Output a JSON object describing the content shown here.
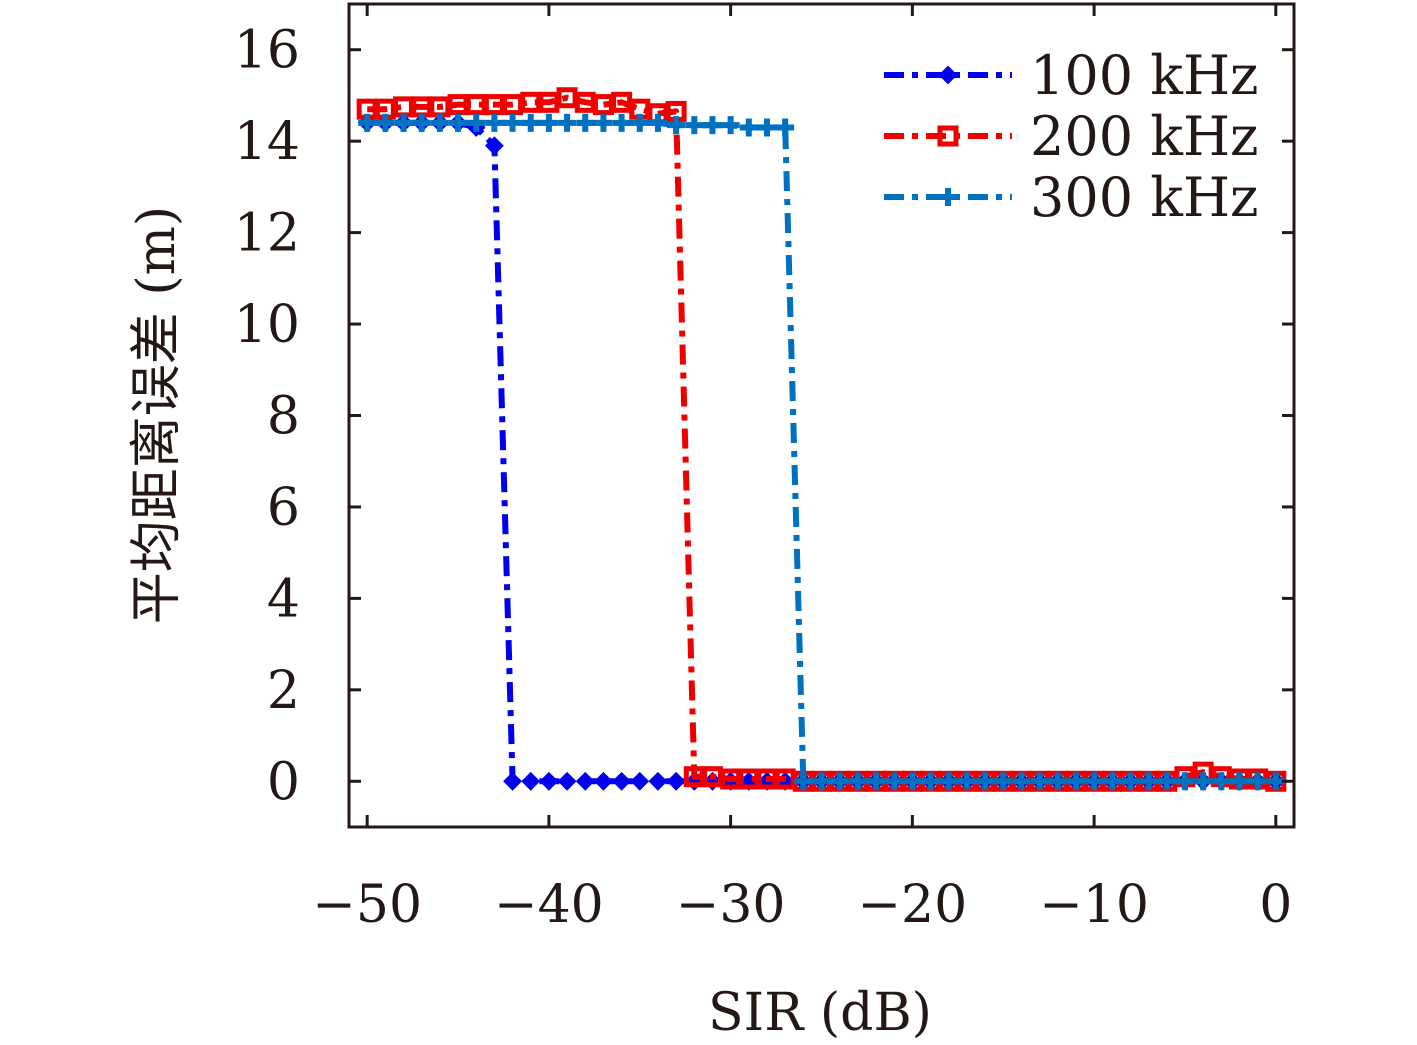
{
  "chart_data": {
    "type": "line",
    "title": "",
    "xlabel": "SIR (dB)",
    "ylabel": "平均距离误差 (m)",
    "xlim": [
      -51,
      1
    ],
    "ylim": [
      -1,
      17
    ],
    "xticks": [
      -50,
      -40,
      -30,
      -20,
      -10,
      0
    ],
    "xtick_labels": [
      "−50",
      "−40",
      "−30",
      "−20",
      "−10",
      "0"
    ],
    "yticks": [
      0,
      2,
      4,
      6,
      8,
      10,
      12,
      14,
      16
    ],
    "ytick_labels": [
      "0",
      "2",
      "4",
      "6",
      "8",
      "10",
      "12",
      "14",
      "16"
    ],
    "grid": false,
    "legend_position": "top-right",
    "series": [
      {
        "name": "100 kHz",
        "color": "#0000ee",
        "marker": "diamond",
        "x": [
          -50,
          -49,
          -48,
          -47,
          -46,
          -45,
          -44,
          -43,
          -42,
          -41,
          -40,
          -39,
          -38,
          -37,
          -36,
          -35,
          -34,
          -33,
          -32,
          -31,
          -30,
          -29,
          -28,
          -27,
          -26,
          -25,
          -24,
          -23,
          -22,
          -21,
          -20,
          -19,
          -18,
          -17,
          -16,
          -15,
          -14,
          -13,
          -12,
          -11,
          -10,
          -9,
          -8,
          -7,
          -6,
          -5,
          -4,
          -3,
          -2,
          -1,
          0
        ],
        "y": [
          14.4,
          14.4,
          14.4,
          14.4,
          14.4,
          14.4,
          14.3,
          13.9,
          0,
          0,
          0,
          0,
          0,
          0,
          0,
          0,
          0,
          0,
          0,
          0,
          0,
          0,
          0,
          0,
          0,
          0,
          0,
          0,
          0,
          0,
          0,
          0,
          0,
          0,
          0,
          0,
          0,
          0,
          0,
          0,
          0,
          0,
          0,
          0,
          0,
          0,
          0,
          0,
          0,
          0,
          0
        ]
      },
      {
        "name": "200 kHz",
        "color": "#ee0000",
        "marker": "square",
        "x": [
          -50,
          -49,
          -48,
          -47,
          -46,
          -45,
          -44,
          -43,
          -42,
          -41,
          -40,
          -39,
          -38,
          -37,
          -36,
          -35,
          -34,
          -33,
          -32,
          -31,
          -30,
          -29,
          -28,
          -27,
          -26,
          -25,
          -24,
          -23,
          -22,
          -21,
          -20,
          -19,
          -18,
          -17,
          -16,
          -15,
          -14,
          -13,
          -12,
          -11,
          -10,
          -9,
          -8,
          -7,
          -6,
          -5,
          -4,
          -3,
          -2,
          -1,
          0
        ],
        "y": [
          14.7,
          14.7,
          14.75,
          14.75,
          14.75,
          14.8,
          14.8,
          14.8,
          14.8,
          14.85,
          14.85,
          14.95,
          14.85,
          14.8,
          14.85,
          14.7,
          14.6,
          14.65,
          0.1,
          0.1,
          0.05,
          0.05,
          0.05,
          0.05,
          0,
          0,
          0,
          0,
          0,
          0,
          0,
          0,
          0,
          0,
          0,
          0,
          0,
          0,
          0,
          0,
          0,
          0,
          0,
          0,
          0,
          0.1,
          0.2,
          0.1,
          0.05,
          0.05,
          0
        ]
      },
      {
        "name": "300 kHz",
        "color": "#0070c0",
        "marker": "plus",
        "x": [
          -50,
          -49,
          -48,
          -47,
          -46,
          -45,
          -44,
          -43,
          -42,
          -41,
          -40,
          -39,
          -38,
          -37,
          -36,
          -35,
          -34,
          -33,
          -32,
          -31,
          -30,
          -29,
          -28,
          -27,
          -26,
          -25,
          -24,
          -23,
          -22,
          -21,
          -20,
          -19,
          -18,
          -17,
          -16,
          -15,
          -14,
          -13,
          -12,
          -11,
          -10,
          -9,
          -8,
          -7,
          -6,
          -5,
          -4,
          -3,
          -2,
          -1,
          0
        ],
        "y": [
          14.4,
          14.4,
          14.4,
          14.4,
          14.4,
          14.4,
          14.4,
          14.4,
          14.4,
          14.4,
          14.4,
          14.4,
          14.4,
          14.4,
          14.4,
          14.4,
          14.4,
          14.35,
          14.35,
          14.35,
          14.35,
          14.3,
          14.3,
          14.3,
          0,
          0,
          0,
          0,
          0,
          0,
          0,
          0,
          0,
          0,
          0,
          0,
          0,
          0,
          0,
          0,
          0,
          0,
          0,
          0,
          0,
          0,
          0,
          0,
          0,
          0,
          0
        ]
      }
    ]
  }
}
